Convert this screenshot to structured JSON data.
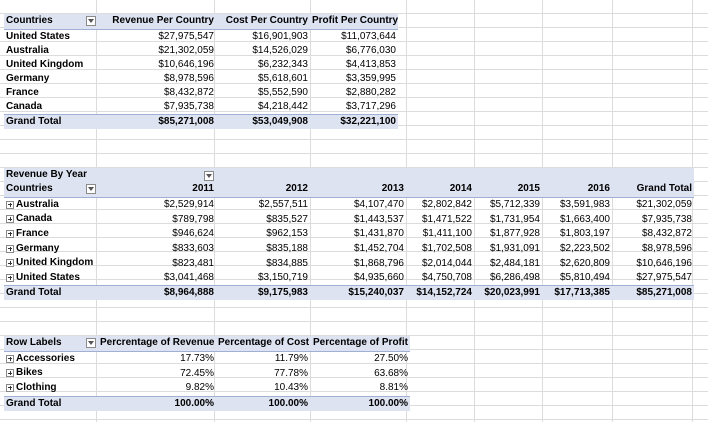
{
  "pivot1": {
    "headers": [
      "Countries",
      "Revenue Per Country",
      "Cost Per Country",
      "Profit Per Country"
    ],
    "filter_icon": "sort-filter-icon",
    "rows": [
      [
        "United States",
        "$27,975,547",
        "$16,901,903",
        "$11,073,644"
      ],
      [
        "Australia",
        "$21,302,059",
        "$14,526,029",
        "$6,776,030"
      ],
      [
        "United Kingdom",
        "$10,646,196",
        "$6,232,343",
        "$4,413,853"
      ],
      [
        "Germany",
        "$8,978,596",
        "$5,618,601",
        "$3,359,995"
      ],
      [
        "France",
        "$8,432,872",
        "$5,552,590",
        "$2,880,282"
      ],
      [
        "Canada",
        "$7,935,738",
        "$4,218,442",
        "$3,717,296"
      ]
    ],
    "total": [
      "Grand Total",
      "$85,271,008",
      "$53,049,908",
      "$32,221,100"
    ]
  },
  "pivot2": {
    "title": "Revenue By Year",
    "row_label": "Countries",
    "years": [
      "2011",
      "2012",
      "2013",
      "2014",
      "2015",
      "2016"
    ],
    "grand_total_label": "Grand Total",
    "rows": [
      [
        "Australia",
        "$2,529,914",
        "$2,557,511",
        "$4,107,470",
        "$2,802,842",
        "$5,712,339",
        "$3,591,983",
        "$21,302,059"
      ],
      [
        "Canada",
        "$789,798",
        "$835,527",
        "$1,443,537",
        "$1,471,522",
        "$1,731,954",
        "$1,663,400",
        "$7,935,738"
      ],
      [
        "France",
        "$946,624",
        "$962,153",
        "$1,431,870",
        "$1,411,100",
        "$1,877,928",
        "$1,803,197",
        "$8,432,872"
      ],
      [
        "Germany",
        "$833,603",
        "$835,188",
        "$1,452,704",
        "$1,702,508",
        "$1,931,091",
        "$2,223,502",
        "$8,978,596"
      ],
      [
        "United Kingdom",
        "$823,481",
        "$834,885",
        "$1,868,796",
        "$2,014,044",
        "$2,484,181",
        "$2,620,809",
        "$10,646,196"
      ],
      [
        "United States",
        "$3,041,468",
        "$3,150,719",
        "$4,935,660",
        "$4,750,708",
        "$6,286,498",
        "$5,810,494",
        "$27,975,547"
      ]
    ],
    "total": [
      "Grand Total",
      "$8,964,888",
      "$9,175,983",
      "$15,240,037",
      "$14,152,724",
      "$20,023,991",
      "$17,713,385",
      "$85,271,008"
    ]
  },
  "pivot3": {
    "headers": [
      "Row Labels",
      "Percrentage of Revenue",
      "Percentage of Cost",
      "Percentage of Profit"
    ],
    "rows": [
      [
        "Accessories",
        "17.73%",
        "11.79%",
        "27.50%"
      ],
      [
        "Bikes",
        "72.45%",
        "77.78%",
        "63.68%"
      ],
      [
        "Clothing",
        "9.82%",
        "10.43%",
        "8.81%"
      ]
    ],
    "total": [
      "Grand Total",
      "100.00%",
      "100.00%",
      "100.00%"
    ]
  },
  "colors": {
    "header_bg": "#dde3f1",
    "border": "#9fb0d4",
    "gridline": "#dcdcdc"
  }
}
